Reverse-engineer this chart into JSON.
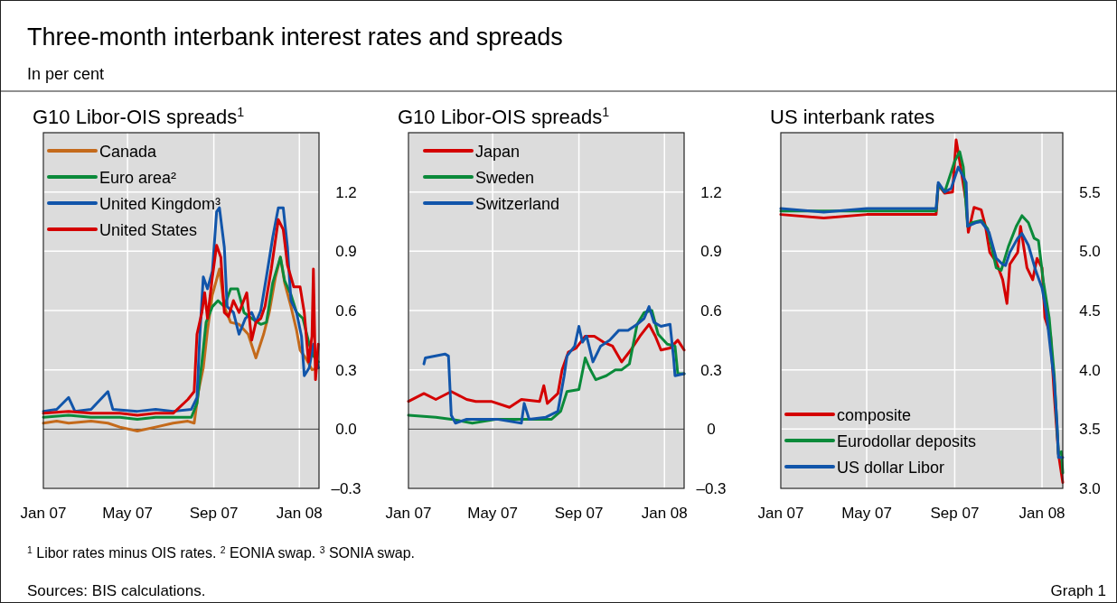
{
  "chart_data": [
    {
      "type": "line",
      "title": "G10 Libor-OIS spreads$^{1}$",
      "annotations": [
        "Three-month interbank interest rates and spreads",
        "In per cent",
        "$^{1}$ Libor rates minus OIS rates.   $^{2}$ EONIA swap.   $^{3}$ SONIA swap.",
        "Sources: BIS calculations.",
        "Graph 1"
      ],
      "xlim": [
        "2007-01-01",
        "2008-01-29"
      ],
      "xticks": [
        {
          "value": "2007-01-01",
          "label": "Jan 07"
        },
        {
          "value": "2007-05-01",
          "label": "May 07"
        },
        {
          "value": "2007-09-01",
          "label": "Sep 07"
        },
        {
          "value": "2008-01-01",
          "label": "Jan 08"
        }
      ],
      "ylim": [
        -0.3,
        1.5
      ],
      "yticks": [
        {
          "value": -0.3,
          "label": "–0.3"
        },
        {
          "value": 0,
          "label": "0.0"
        },
        0.3,
        0.6,
        0.9,
        1.2
      ],
      "grid": true,
      "legend": "top left",
      "ref_lines": [
        {
          "axis": "y",
          "value": 0,
          "color": "#555555"
        }
      ],
      "series": [
        {
          "name": "Canada",
          "color": "#c46a1b",
          "x": [
            "2007-01-01",
            "2007-01-20",
            "2007-02-06",
            "2007-03-10",
            "2007-04-03",
            "2007-04-20",
            "2007-05-15",
            "2007-06-10",
            "2007-07-05",
            "2007-07-26",
            "2007-08-04",
            "2007-08-10",
            "2007-08-17",
            "2007-08-23",
            "2007-08-30",
            "2007-09-09",
            "2007-09-16",
            "2007-09-25",
            "2007-10-07",
            "2007-10-20",
            "2007-10-31",
            "2007-11-11",
            "2007-11-19",
            "2007-11-28",
            "2007-12-05",
            "2007-12-11",
            "2007-12-20",
            "2007-12-28",
            "2008-01-02",
            "2008-01-10",
            "2008-01-19",
            "2008-01-28"
          ],
          "values": [
            0.03,
            0.04,
            0.03,
            0.04,
            0.03,
            0.01,
            -0.01,
            0.01,
            0.03,
            0.04,
            0.03,
            0.19,
            0.31,
            0.5,
            0.68,
            0.81,
            0.62,
            0.54,
            0.53,
            0.48,
            0.36,
            0.48,
            0.59,
            0.77,
            0.87,
            0.74,
            0.62,
            0.5,
            0.4,
            0.36,
            0.3,
            0.31
          ]
        },
        {
          "name": "Euro area²",
          "color": "#0a8a3a",
          "x": [
            "2007-01-01",
            "2007-02-06",
            "2007-03-10",
            "2007-04-20",
            "2007-05-15",
            "2007-06-10",
            "2007-07-05",
            "2007-07-31",
            "2007-08-08",
            "2007-08-15",
            "2007-08-21",
            "2007-08-30",
            "2007-09-07",
            "2007-09-16",
            "2007-09-25",
            "2007-10-05",
            "2007-10-14",
            "2007-10-25",
            "2007-11-07",
            "2007-11-15",
            "2007-11-24",
            "2007-12-05",
            "2007-12-11",
            "2007-12-20",
            "2007-12-28",
            "2008-01-06",
            "2008-01-15",
            "2008-01-21",
            "2008-01-28"
          ],
          "values": [
            0.06,
            0.07,
            0.06,
            0.06,
            0.05,
            0.06,
            0.06,
            0.06,
            0.13,
            0.34,
            0.54,
            0.62,
            0.65,
            0.62,
            0.71,
            0.71,
            0.59,
            0.56,
            0.53,
            0.54,
            0.74,
            0.87,
            0.75,
            0.68,
            0.59,
            0.56,
            0.43,
            0.37,
            0.34
          ]
        },
        {
          "name": "United Kingdom³",
          "color": "#1155aa",
          "x": [
            "2007-01-01",
            "2007-01-20",
            "2007-02-06",
            "2007-02-15",
            "2007-03-10",
            "2007-04-03",
            "2007-04-10",
            "2007-05-15",
            "2007-06-10",
            "2007-07-05",
            "2007-07-31",
            "2007-08-08",
            "2007-08-12",
            "2007-08-17",
            "2007-08-23",
            "2007-08-30",
            "2007-09-05",
            "2007-09-09",
            "2007-09-16",
            "2007-09-20",
            "2007-09-29",
            "2007-10-07",
            "2007-10-16",
            "2007-10-25",
            "2007-10-31",
            "2007-11-07",
            "2007-11-15",
            "2007-11-24",
            "2007-12-02",
            "2007-12-09",
            "2007-12-15",
            "2007-12-20",
            "2007-12-28",
            "2008-01-04",
            "2008-01-08",
            "2008-01-15",
            "2008-01-21",
            "2008-01-28"
          ],
          "values": [
            0.09,
            0.1,
            0.16,
            0.09,
            0.1,
            0.19,
            0.1,
            0.09,
            0.1,
            0.09,
            0.1,
            0.16,
            0.47,
            0.77,
            0.71,
            0.8,
            1.1,
            1.12,
            0.92,
            0.62,
            0.59,
            0.48,
            0.56,
            0.59,
            0.54,
            0.6,
            0.77,
            0.97,
            1.12,
            1.12,
            0.92,
            0.65,
            0.59,
            0.47,
            0.27,
            0.31,
            0.43,
            0.31
          ]
        },
        {
          "name": "United States",
          "color": "#d40000",
          "x": [
            "2007-01-01",
            "2007-02-06",
            "2007-03-10",
            "2007-04-20",
            "2007-05-15",
            "2007-06-10",
            "2007-07-05",
            "2007-07-26",
            "2007-08-04",
            "2007-08-08",
            "2007-08-15",
            "2007-08-19",
            "2007-08-23",
            "2007-08-30",
            "2007-09-05",
            "2007-09-11",
            "2007-09-16",
            "2007-09-22",
            "2007-09-29",
            "2007-10-07",
            "2007-10-18",
            "2007-10-25",
            "2007-10-31",
            "2007-11-07",
            "2007-11-13",
            "2007-11-22",
            "2007-12-02",
            "2007-12-09",
            "2007-12-15",
            "2007-12-24",
            "2008-01-02",
            "2008-01-08",
            "2008-01-14",
            "2008-01-19",
            "2008-01-21",
            "2008-01-24",
            "2008-01-28"
          ],
          "values": [
            0.08,
            0.09,
            0.08,
            0.08,
            0.07,
            0.08,
            0.08,
            0.15,
            0.19,
            0.48,
            0.59,
            0.69,
            0.56,
            0.77,
            0.93,
            0.87,
            0.59,
            0.57,
            0.65,
            0.59,
            0.69,
            0.45,
            0.54,
            0.56,
            0.62,
            0.81,
            1.06,
            1.01,
            0.83,
            0.72,
            0.72,
            0.59,
            0.34,
            0.47,
            0.81,
            0.25,
            0.43
          ]
        }
      ]
    },
    {
      "type": "line",
      "title": "G10 Libor-OIS spreads$^{1}$",
      "xlim": [
        "2007-01-01",
        "2008-01-29"
      ],
      "xticks": [
        {
          "value": "2007-01-01",
          "label": "Jan 07"
        },
        {
          "value": "2007-05-01",
          "label": "May 07"
        },
        {
          "value": "2007-09-01",
          "label": "Sep 07"
        },
        {
          "value": "2008-01-01",
          "label": "Jan 08"
        }
      ],
      "ylim": [
        -0.3,
        1.5
      ],
      "yticks": [
        {
          "value": -0.3,
          "label": "–0.3"
        },
        0,
        0.3,
        0.6,
        0.9,
        1.2
      ],
      "grid": true,
      "legend": "top left",
      "ref_lines": [
        {
          "axis": "y",
          "value": 0,
          "color": "#555555"
        }
      ],
      "series": [
        {
          "name": "Japan",
          "color": "#d40000",
          "x": [
            "2007-01-01",
            "2007-01-23",
            "2007-02-09",
            "2007-03-03",
            "2007-03-25",
            "2007-04-07",
            "2007-04-29",
            "2007-05-25",
            "2007-06-11",
            "2007-07-07",
            "2007-07-13",
            "2007-07-18",
            "2007-08-02",
            "2007-08-08",
            "2007-08-17",
            "2007-08-28",
            "2007-09-10",
            "2007-09-23",
            "2007-10-06",
            "2007-10-19",
            "2007-11-01",
            "2007-11-14",
            "2007-11-27",
            "2007-12-10",
            "2007-12-19",
            "2007-12-27",
            "2008-01-09",
            "2008-01-20",
            "2008-01-29"
          ],
          "values": [
            0.14,
            0.18,
            0.15,
            0.19,
            0.15,
            0.14,
            0.14,
            0.11,
            0.15,
            0.14,
            0.22,
            0.13,
            0.18,
            0.3,
            0.39,
            0.41,
            0.47,
            0.47,
            0.44,
            0.42,
            0.34,
            0.4,
            0.47,
            0.53,
            0.47,
            0.4,
            0.41,
            0.45,
            0.4
          ]
        },
        {
          "name": "Sweden",
          "color": "#0a8a3a",
          "x": [
            "2007-01-01",
            "2007-02-09",
            "2007-03-03",
            "2007-04-02",
            "2007-05-07",
            "2007-06-22",
            "2007-07-24",
            "2007-08-06",
            "2007-08-15",
            "2007-09-01",
            "2007-09-10",
            "2007-09-16",
            "2007-09-25",
            "2007-10-10",
            "2007-10-23",
            "2007-11-01",
            "2007-11-12",
            "2007-11-23",
            "2007-12-03",
            "2007-12-14",
            "2007-12-23",
            "2008-01-05",
            "2008-01-16",
            "2008-01-20",
            "2008-01-29"
          ],
          "values": [
            0.07,
            0.06,
            0.05,
            0.03,
            0.05,
            0.05,
            0.05,
            0.09,
            0.19,
            0.2,
            0.36,
            0.31,
            0.25,
            0.27,
            0.3,
            0.3,
            0.33,
            0.53,
            0.59,
            0.6,
            0.48,
            0.43,
            0.42,
            0.28,
            0.28
          ]
        },
        {
          "name": "Switzerland",
          "color": "#1155aa",
          "x": [
            "2007-01-23",
            "2007-01-25",
            "2007-02-22",
            "2007-02-27",
            "2007-03-03",
            "2007-03-09",
            "2007-03-25",
            "2007-05-07",
            "2007-06-11",
            "2007-06-15",
            "2007-06-22",
            "2007-07-16",
            "2007-08-02",
            "2007-08-11",
            "2007-08-15",
            "2007-08-26",
            "2007-09-01",
            "2007-09-06",
            "2007-09-12",
            "2007-09-21",
            "2007-10-02",
            "2007-10-15",
            "2007-10-28",
            "2007-11-10",
            "2007-11-23",
            "2007-12-03",
            "2007-12-10",
            "2007-12-17",
            "2007-12-27",
            "2008-01-09",
            "2008-01-14",
            "2008-01-16",
            "2008-01-29"
          ],
          "values": [
            0.33,
            0.36,
            0.38,
            0.37,
            0.07,
            0.03,
            0.05,
            0.05,
            0.03,
            0.13,
            0.05,
            0.06,
            0.09,
            0.27,
            0.37,
            0.42,
            0.52,
            0.44,
            0.47,
            0.34,
            0.42,
            0.45,
            0.5,
            0.5,
            0.53,
            0.56,
            0.62,
            0.54,
            0.52,
            0.53,
            0.36,
            0.27,
            0.28
          ]
        }
      ]
    },
    {
      "type": "line",
      "title": "US interbank rates",
      "xlim": [
        "2007-01-01",
        "2008-01-30"
      ],
      "xticks": [
        {
          "value": "2007-01-01",
          "label": "Jan 07"
        },
        {
          "value": "2007-05-01",
          "label": "May 07"
        },
        {
          "value": "2007-09-01",
          "label": "Sep 07"
        },
        {
          "value": "2008-01-01",
          "label": "Jan 08"
        }
      ],
      "ylim": [
        3,
        6
      ],
      "yticks": [
        {
          "value": 3,
          "label": "3.0"
        },
        3.5,
        {
          "value": 4,
          "label": "4.0"
        },
        4.5,
        {
          "value": 5,
          "label": "5.0"
        },
        5.5
      ],
      "grid": true,
      "legend": "bottom left",
      "series": [
        {
          "name": "composite",
          "color": "#d40000",
          "x": [
            "2007-01-01",
            "2007-03-02",
            "2007-05-01",
            "2007-07-01",
            "2007-08-06",
            "2007-08-09",
            "2007-08-18",
            "2007-08-29",
            "2007-09-03",
            "2007-09-08",
            "2007-09-17",
            "2007-09-20",
            "2007-09-28",
            "2007-10-08",
            "2007-10-14",
            "2007-10-20",
            "2007-10-29",
            "2007-11-07",
            "2007-11-13",
            "2007-11-17",
            "2007-11-28",
            "2007-12-02",
            "2007-12-11",
            "2007-12-19",
            "2007-12-25",
            "2008-01-01",
            "2008-01-05",
            "2008-01-13",
            "2008-01-18",
            "2008-01-24",
            "2008-01-30"
          ],
          "values": [
            5.31,
            5.28,
            5.31,
            5.31,
            5.31,
            5.56,
            5.49,
            5.5,
            5.94,
            5.76,
            5.41,
            5.16,
            5.37,
            5.35,
            5.21,
            4.99,
            4.91,
            4.76,
            4.56,
            4.89,
            4.99,
            5.21,
            4.86,
            4.76,
            4.94,
            4.86,
            4.44,
            4.29,
            3.79,
            3.29,
            3.05
          ]
        },
        {
          "name": "Eurodollar deposits",
          "color": "#0a8a3a",
          "x": [
            "2007-01-01",
            "2007-05-01",
            "2007-08-06",
            "2007-08-09",
            "2007-08-18",
            "2007-09-01",
            "2007-09-08",
            "2007-09-13",
            "2007-09-19",
            "2007-09-25",
            "2007-10-08",
            "2007-10-17",
            "2007-10-29",
            "2007-11-05",
            "2007-11-15",
            "2007-11-26",
            "2007-12-04",
            "2007-12-13",
            "2007-12-21",
            "2007-12-27",
            "2008-01-03",
            "2008-01-11",
            "2008-01-18",
            "2008-01-24",
            "2008-01-28",
            "2008-01-30"
          ],
          "values": [
            5.34,
            5.34,
            5.34,
            5.56,
            5.5,
            5.76,
            5.84,
            5.71,
            5.21,
            5.24,
            5.26,
            5.19,
            4.86,
            4.84,
            5.04,
            5.21,
            5.3,
            5.24,
            5.11,
            5.09,
            4.74,
            4.44,
            3.96,
            3.29,
            3.31,
            3.13
          ]
        },
        {
          "name": "US dollar Libor",
          "color": "#1155aa",
          "x": [
            "2007-01-01",
            "2007-03-02",
            "2007-05-01",
            "2007-08-06",
            "2007-08-09",
            "2007-08-18",
            "2007-08-27",
            "2007-09-06",
            "2007-09-17",
            "2007-09-19",
            "2007-09-30",
            "2007-10-08",
            "2007-10-19",
            "2007-10-29",
            "2007-11-07",
            "2007-11-11",
            "2007-11-17",
            "2007-11-28",
            "2007-12-04",
            "2007-12-13",
            "2007-12-23",
            "2008-01-01",
            "2008-01-07",
            "2008-01-13",
            "2008-01-18",
            "2008-01-22",
            "2008-01-24",
            "2008-01-30"
          ],
          "values": [
            5.36,
            5.33,
            5.36,
            5.36,
            5.58,
            5.5,
            5.53,
            5.71,
            5.58,
            5.21,
            5.24,
            5.25,
            5.16,
            4.94,
            4.89,
            4.88,
            4.99,
            5.11,
            5.15,
            5.05,
            4.84,
            4.69,
            4.49,
            4.16,
            3.91,
            3.54,
            3.26,
            3.26
          ]
        }
      ]
    }
  ]
}
